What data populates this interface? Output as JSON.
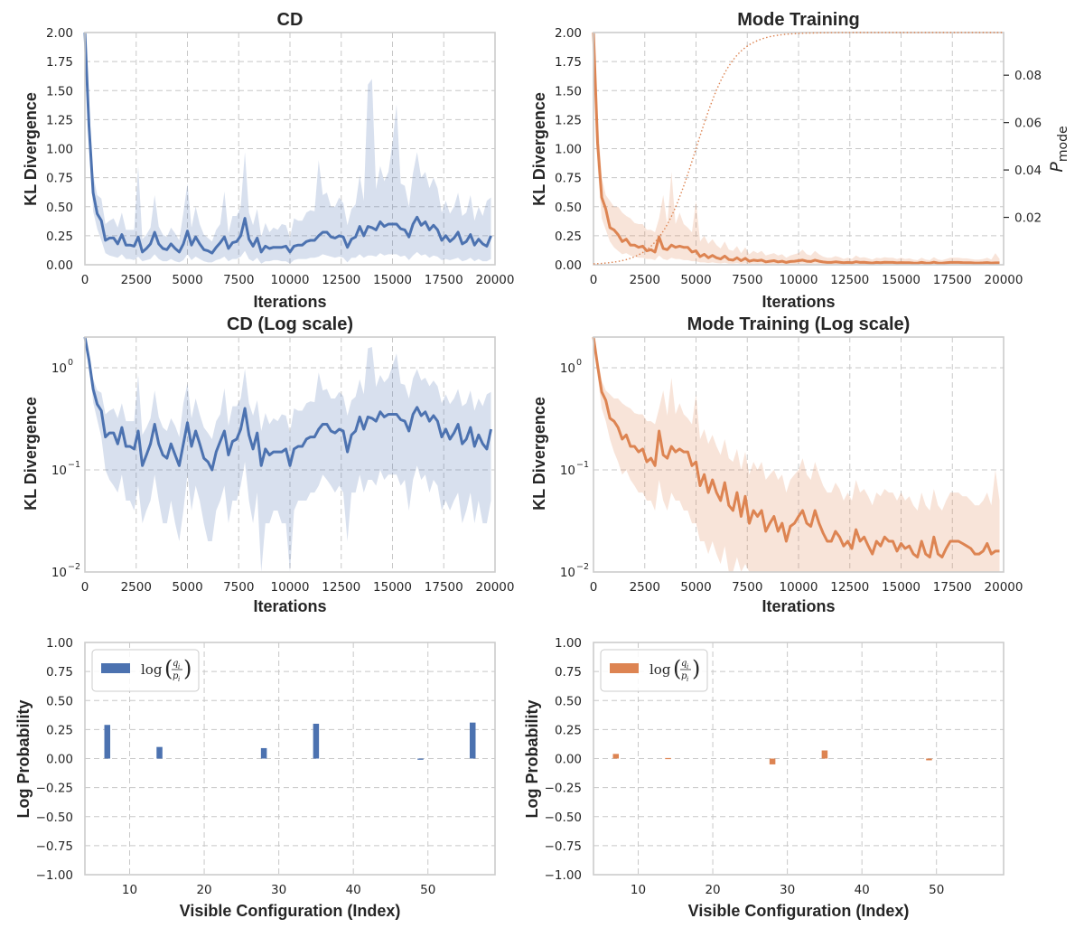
{
  "colors": {
    "blue": "#4c72b0",
    "orange": "#dd8452",
    "grid": "#c8c8c8",
    "spine": "#cccccc",
    "text": "#262626"
  },
  "chart_data": [
    {
      "type": "line",
      "title": "CD",
      "xlabel": "Iterations",
      "ylabel": "KL Divergence",
      "xlim": [
        0,
        20000
      ],
      "ylim": [
        0,
        2.0
      ],
      "yscale": "linear",
      "grid": true,
      "color": "#4c72b0",
      "xticks": [
        "0",
        "2500",
        "5000",
        "7500",
        "10000",
        "12500",
        "15000",
        "17500",
        "20000"
      ],
      "yticks": [
        "0.00",
        "0.25",
        "0.50",
        "0.75",
        "1.00",
        "1.25",
        "1.50",
        "1.75",
        "2.00"
      ],
      "x": [
        0,
        200,
        400,
        600,
        800,
        1000,
        1200,
        1400,
        1600,
        1800,
        2000,
        2200,
        2400,
        2600,
        2800,
        3000,
        3200,
        3400,
        3600,
        3800,
        4000,
        4200,
        4400,
        4600,
        4800,
        5000,
        5200,
        5400,
        5600,
        5800,
        6000,
        6200,
        6400,
        6600,
        6800,
        7000,
        7200,
        7400,
        7600,
        7800,
        8000,
        8200,
        8400,
        8600,
        8800,
        9000,
        9200,
        9400,
        9600,
        9800,
        10000,
        10200,
        10400,
        10600,
        10800,
        11000,
        11200,
        11400,
        11600,
        11800,
        12000,
        12200,
        12400,
        12600,
        12800,
        13000,
        13200,
        13400,
        13600,
        13800,
        14000,
        14200,
        14400,
        14600,
        14800,
        15000,
        15200,
        15400,
        15600,
        15800,
        16000,
        16200,
        16400,
        16600,
        16800,
        17000,
        17200,
        17400,
        17600,
        17800,
        18000,
        18200,
        18400,
        18600,
        18800,
        19000,
        19200,
        19400,
        19600,
        19800
      ],
      "y": [
        2.0,
        1.2,
        0.62,
        0.44,
        0.38,
        0.21,
        0.23,
        0.23,
        0.18,
        0.26,
        0.17,
        0.17,
        0.16,
        0.24,
        0.11,
        0.14,
        0.18,
        0.28,
        0.18,
        0.14,
        0.13,
        0.18,
        0.14,
        0.11,
        0.18,
        0.29,
        0.17,
        0.24,
        0.18,
        0.13,
        0.12,
        0.1,
        0.15,
        0.19,
        0.24,
        0.14,
        0.19,
        0.2,
        0.25,
        0.4,
        0.22,
        0.16,
        0.23,
        0.11,
        0.16,
        0.14,
        0.15,
        0.15,
        0.15,
        0.16,
        0.11,
        0.16,
        0.17,
        0.17,
        0.2,
        0.21,
        0.21,
        0.25,
        0.28,
        0.28,
        0.24,
        0.23,
        0.25,
        0.24,
        0.15,
        0.22,
        0.24,
        0.33,
        0.25,
        0.33,
        0.32,
        0.3,
        0.37,
        0.33,
        0.35,
        0.35,
        0.35,
        0.31,
        0.3,
        0.24,
        0.35,
        0.41,
        0.34,
        0.37,
        0.3,
        0.34,
        0.3,
        0.21,
        0.25,
        0.2,
        0.23,
        0.28,
        0.18,
        0.2,
        0.26,
        0.17,
        0.22,
        0.18,
        0.16,
        0.25
      ],
      "y_low": [
        2.0,
        1.2,
        0.46,
        0.31,
        0.21,
        0.1,
        0.08,
        0.07,
        0.06,
        0.09,
        0.05,
        0.05,
        0.04,
        0.07,
        0.03,
        0.04,
        0.05,
        0.09,
        0.05,
        0.03,
        0.03,
        0.05,
        0.03,
        0.02,
        0.04,
        0.09,
        0.04,
        0.07,
        0.05,
        0.03,
        0.02,
        0.02,
        0.04,
        0.05,
        0.07,
        0.03,
        0.05,
        0.05,
        0.07,
        0.12,
        0.05,
        0.03,
        0.06,
        0.01,
        0.03,
        0.03,
        0.04,
        0.04,
        0.03,
        0.03,
        0.01,
        0.04,
        0.05,
        0.05,
        0.05,
        0.06,
        0.06,
        0.07,
        0.09,
        0.08,
        0.07,
        0.06,
        0.07,
        0.06,
        0.02,
        0.06,
        0.06,
        0.09,
        0.06,
        0.08,
        0.08,
        0.07,
        0.1,
        0.08,
        0.09,
        0.09,
        0.09,
        0.07,
        0.08,
        0.04,
        0.08,
        0.11,
        0.08,
        0.09,
        0.06,
        0.08,
        0.07,
        0.04,
        0.05,
        0.04,
        0.05,
        0.06,
        0.03,
        0.04,
        0.06,
        0.03,
        0.05,
        0.03,
        0.03,
        0.05
      ],
      "y_high": [
        2.0,
        1.2,
        0.78,
        0.6,
        0.57,
        0.35,
        0.38,
        0.4,
        0.32,
        0.45,
        0.3,
        0.3,
        0.3,
        0.85,
        0.22,
        0.26,
        0.32,
        0.6,
        0.33,
        0.26,
        0.24,
        0.32,
        0.27,
        0.21,
        0.45,
        0.7,
        0.32,
        0.5,
        0.35,
        0.26,
        0.23,
        0.2,
        0.3,
        0.35,
        0.63,
        0.27,
        0.42,
        0.42,
        0.5,
        0.97,
        0.45,
        0.34,
        0.48,
        0.24,
        0.36,
        0.28,
        0.32,
        0.3,
        0.35,
        0.34,
        0.23,
        0.4,
        0.38,
        0.38,
        0.45,
        0.47,
        0.46,
        0.9,
        0.6,
        0.62,
        0.5,
        0.5,
        0.58,
        0.53,
        0.34,
        0.48,
        0.52,
        0.77,
        0.55,
        1.55,
        1.6,
        0.65,
        0.85,
        0.72,
        0.8,
        1.05,
        1.38,
        0.7,
        0.68,
        0.5,
        0.79,
        0.97,
        0.75,
        0.8,
        0.66,
        0.75,
        0.66,
        0.45,
        0.55,
        0.44,
        0.5,
        0.62,
        0.42,
        0.45,
        0.6,
        0.38,
        0.5,
        0.42,
        0.55,
        0.58
      ]
    },
    {
      "type": "line",
      "title": "Mode Training",
      "xlabel": "Iterations",
      "ylabel": "KL Divergence",
      "ylabel_right": "P_mode",
      "xlim": [
        0,
        20000
      ],
      "ylim": [
        0,
        2.0
      ],
      "ylim_right": [
        0,
        0.098
      ],
      "yscale": "linear",
      "grid": true,
      "color": "#dd8452",
      "xticks": [
        "0",
        "2500",
        "5000",
        "7500",
        "10000",
        "12500",
        "15000",
        "17500",
        "20000"
      ],
      "yticks": [
        "0.00",
        "0.25",
        "0.50",
        "0.75",
        "1.00",
        "1.25",
        "1.50",
        "1.75",
        "2.00"
      ],
      "yticks_right": [
        "0.02",
        "0.04",
        "0.06",
        "0.08"
      ],
      "x": [
        0,
        200,
        400,
        600,
        800,
        1000,
        1200,
        1400,
        1600,
        1800,
        2000,
        2200,
        2400,
        2600,
        2800,
        3000,
        3200,
        3400,
        3600,
        3800,
        4000,
        4200,
        4400,
        4600,
        4800,
        5000,
        5200,
        5400,
        5600,
        5800,
        6000,
        6200,
        6400,
        6600,
        6800,
        7000,
        7200,
        7400,
        7600,
        7800,
        8000,
        8200,
        8400,
        8600,
        8800,
        9000,
        9200,
        9400,
        9600,
        9800,
        10000,
        10200,
        10400,
        10600,
        10800,
        11000,
        11200,
        11400,
        11600,
        11800,
        12000,
        12200,
        12400,
        12600,
        12800,
        13000,
        13200,
        13400,
        13600,
        13800,
        14000,
        14200,
        14400,
        14600,
        14800,
        15000,
        15200,
        15400,
        15600,
        15800,
        16000,
        16200,
        16400,
        16600,
        16800,
        17000,
        17200,
        17400,
        17600,
        17800,
        18000,
        18200,
        18400,
        18600,
        18800,
        19000,
        19200,
        19400,
        19600,
        19800
      ],
      "y": [
        2.0,
        1.05,
        0.58,
        0.48,
        0.32,
        0.3,
        0.26,
        0.2,
        0.22,
        0.17,
        0.17,
        0.15,
        0.16,
        0.12,
        0.13,
        0.11,
        0.24,
        0.14,
        0.13,
        0.17,
        0.15,
        0.16,
        0.15,
        0.15,
        0.11,
        0.12,
        0.07,
        0.09,
        0.06,
        0.08,
        0.06,
        0.05,
        0.075,
        0.045,
        0.04,
        0.06,
        0.035,
        0.055,
        0.03,
        0.04,
        0.035,
        0.04,
        0.025,
        0.03,
        0.035,
        0.025,
        0.03,
        0.02,
        0.028,
        0.03,
        0.035,
        0.04,
        0.03,
        0.028,
        0.04,
        0.03,
        0.024,
        0.02,
        0.02,
        0.025,
        0.022,
        0.018,
        0.02,
        0.017,
        0.026,
        0.02,
        0.022,
        0.018,
        0.015,
        0.02,
        0.018,
        0.022,
        0.02,
        0.02,
        0.016,
        0.019,
        0.017,
        0.018,
        0.015,
        0.014,
        0.02,
        0.015,
        0.014,
        0.022,
        0.015,
        0.014,
        0.017,
        0.02,
        0.02,
        0.02,
        0.019,
        0.018,
        0.017,
        0.015,
        0.015,
        0.016,
        0.019,
        0.015,
        0.016,
        0.016
      ],
      "y_low": [
        2.0,
        0.85,
        0.4,
        0.3,
        0.2,
        0.15,
        0.12,
        0.09,
        0.1,
        0.08,
        0.07,
        0.06,
        0.06,
        0.05,
        0.05,
        0.04,
        0.08,
        0.05,
        0.04,
        0.06,
        0.05,
        0.05,
        0.04,
        0.04,
        0.03,
        0.03,
        0.02,
        0.02,
        0.015,
        0.02,
        0.015,
        0.012,
        0.018,
        0.01,
        0.009,
        0.014,
        0.008,
        0.012,
        0.007,
        0.009,
        0.008,
        0.009,
        0.006,
        0.007,
        0.008,
        0.006,
        0.007,
        0.005,
        0.006,
        0.007,
        0.008,
        0.009,
        0.007,
        0.006,
        0.009,
        0.007,
        0.006,
        0.005,
        0.005,
        0.006,
        0.005,
        0.004,
        0.005,
        0.004,
        0.006,
        0.005,
        0.005,
        0.004,
        0.004,
        0.005,
        0.004,
        0.005,
        0.005,
        0.005,
        0.004,
        0.005,
        0.004,
        0.004,
        0.004,
        0.003,
        0.005,
        0.004,
        0.003,
        0.005,
        0.004,
        0.003,
        0.004,
        0.005,
        0.005,
        0.005,
        0.004,
        0.004,
        0.004,
        0.004,
        0.004,
        0.004,
        0.005,
        0.004,
        0.004,
        0.004
      ],
      "y_high": [
        2.0,
        1.3,
        0.75,
        0.6,
        0.55,
        0.5,
        0.5,
        0.45,
        0.42,
        0.4,
        0.36,
        0.35,
        0.35,
        0.3,
        0.3,
        0.28,
        0.4,
        0.6,
        0.34,
        0.8,
        0.35,
        0.45,
        0.35,
        0.32,
        0.28,
        0.55,
        0.2,
        0.25,
        0.18,
        0.22,
        0.17,
        0.14,
        0.2,
        0.13,
        0.12,
        0.16,
        0.1,
        0.15,
        0.09,
        0.12,
        0.1,
        0.12,
        0.08,
        0.09,
        0.1,
        0.08,
        0.09,
        0.06,
        0.08,
        0.09,
        0.1,
        0.13,
        0.09,
        0.08,
        0.12,
        0.09,
        0.07,
        0.06,
        0.06,
        0.075,
        0.065,
        0.05,
        0.06,
        0.05,
        0.08,
        0.06,
        0.065,
        0.055,
        0.045,
        0.06,
        0.055,
        0.065,
        0.06,
        0.06,
        0.05,
        0.06,
        0.05,
        0.055,
        0.045,
        0.04,
        0.06,
        0.045,
        0.04,
        0.065,
        0.045,
        0.04,
        0.05,
        0.06,
        0.06,
        0.06,
        0.055,
        0.055,
        0.05,
        0.045,
        0.045,
        0.05,
        0.06,
        0.045,
        0.1,
        0.05
      ],
      "p_mode_curve": "logistic rising from 0 to ~0.098 centered near 5000 iterations, saturating by ~11000"
    },
    {
      "type": "line",
      "title": "CD (Log scale)",
      "xlabel": "Iterations",
      "ylabel": "KL Divergence",
      "xlim": [
        0,
        20000
      ],
      "ylim": [
        0.01,
        2.0
      ],
      "yscale": "log",
      "grid": true,
      "color": "#4c72b0",
      "xticks": [
        "0",
        "2500",
        "5000",
        "7500",
        "10000",
        "12500",
        "15000",
        "17500",
        "20000"
      ],
      "yticks_log": [
        {
          "base": "10",
          "exp": "0",
          "v": 1
        },
        {
          "base": "10",
          "exp": "−1",
          "v": 0.1
        },
        {
          "base": "10",
          "exp": "−2",
          "v": 0.01
        }
      ],
      "same_data_as": "CD"
    },
    {
      "type": "line",
      "title": "Mode Training (Log scale)",
      "xlabel": "Iterations",
      "ylabel": "KL Divergence",
      "xlim": [
        0,
        20000
      ],
      "ylim": [
        0.01,
        2.0
      ],
      "yscale": "log",
      "grid": true,
      "color": "#dd8452",
      "xticks": [
        "0",
        "2500",
        "5000",
        "7500",
        "10000",
        "12500",
        "15000",
        "17500",
        "20000"
      ],
      "yticks_log": [
        {
          "base": "10",
          "exp": "0",
          "v": 1
        },
        {
          "base": "10",
          "exp": "−1",
          "v": 0.1
        },
        {
          "base": "10",
          "exp": "−2",
          "v": 0.01
        }
      ],
      "same_data_as": "Mode Training"
    },
    {
      "type": "bar",
      "xlabel": "Visible Configuration (Index)",
      "ylabel": "Log Probability",
      "xlim": [
        4,
        59
      ],
      "ylim": [
        -1.0,
        1.0
      ],
      "grid": true,
      "color": "#4c72b0",
      "legend": "top-left",
      "xticks": [
        "10",
        "20",
        "30",
        "40",
        "50"
      ],
      "yticks": [
        "−1.00",
        "−0.75",
        "−0.50",
        "−0.25",
        "0.00",
        "0.25",
        "0.50",
        "0.75",
        "1.00"
      ],
      "indices": [
        7,
        14,
        28,
        35,
        49,
        56
      ],
      "values": [
        0.29,
        0.1,
        0.09,
        0.3,
        -0.01,
        0.31
      ]
    },
    {
      "type": "bar",
      "xlabel": "Visible Configuration (Index)",
      "ylabel": "Log Probability",
      "xlim": [
        4,
        59
      ],
      "ylim": [
        -1.0,
        1.0
      ],
      "grid": true,
      "color": "#dd8452",
      "legend": "top-left",
      "xticks": [
        "10",
        "20",
        "30",
        "40",
        "50"
      ],
      "yticks": [
        "−1.00",
        "−0.75",
        "−0.50",
        "−0.25",
        "0.00",
        "0.25",
        "0.50",
        "0.75",
        "1.00"
      ],
      "indices": [
        7,
        14,
        28,
        35,
        49
      ],
      "values": [
        0.04,
        0.005,
        -0.05,
        0.07,
        -0.015
      ]
    }
  ],
  "legend": {
    "prefix": "log",
    "frac_num": "q",
    "frac_num_sub": "i",
    "frac_den": "p",
    "frac_den_sub": "i"
  },
  "labels": {
    "title_cd": "CD",
    "title_mode": "Mode Training",
    "title_cd_log": "CD (Log scale)",
    "title_mode_log": "Mode Training (Log scale)",
    "iterations": "Iterations",
    "kl": "KL Divergence",
    "logprob": "Log Probability",
    "visible": "Visible Configuration (Index)",
    "p_mode_base": "P",
    "p_mode_sub": "mode"
  }
}
